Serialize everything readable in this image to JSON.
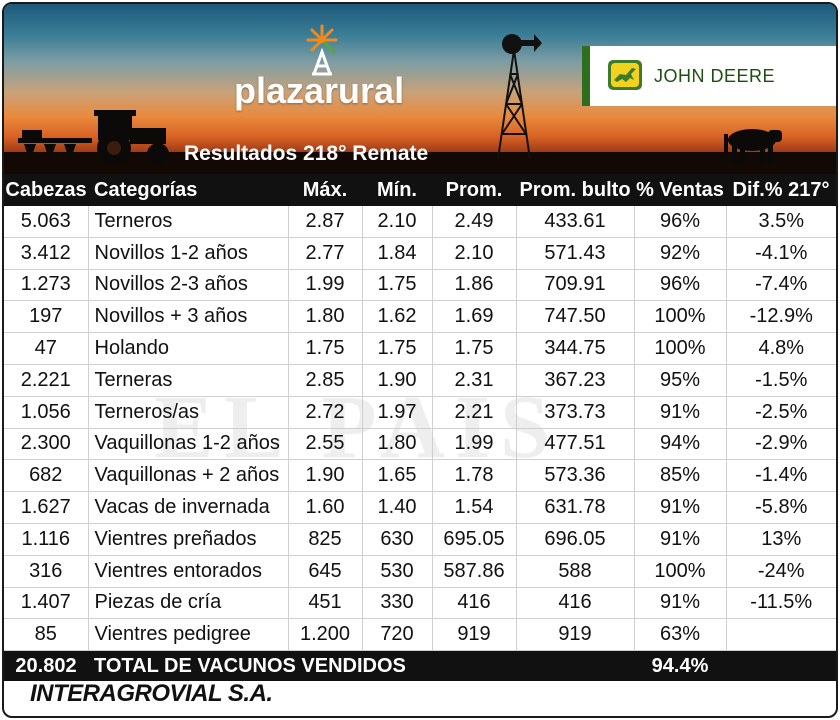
{
  "header": {
    "brand": "plazarural",
    "title": "Resultados 218° Remate",
    "sponsor": "JOHN DEERE"
  },
  "watermark": "EL PAIS",
  "table": {
    "columns": [
      "Cabezas",
      "Categorías",
      "Máx.",
      "Mín.",
      "Prom.",
      "Prom. bulto",
      "% Ventas",
      "Dif.% 217°"
    ],
    "rows": [
      [
        "5.063",
        "Terneros",
        "2.87",
        "2.10",
        "2.49",
        "433.61",
        "96%",
        "3.5%"
      ],
      [
        "3.412",
        "Novillos 1-2 años",
        "2.77",
        "1.84",
        "2.10",
        "571.43",
        "92%",
        "-4.1%"
      ],
      [
        "1.273",
        "Novillos 2-3 años",
        "1.99",
        "1.75",
        "1.86",
        "709.91",
        "96%",
        "-7.4%"
      ],
      [
        "197",
        "Novillos + 3 años",
        "1.80",
        "1.62",
        "1.69",
        "747.50",
        "100%",
        "-12.9%"
      ],
      [
        "47",
        "Holando",
        "1.75",
        "1.75",
        "1.75",
        "344.75",
        "100%",
        "4.8%"
      ],
      [
        "2.221",
        "Terneras",
        "2.85",
        "1.90",
        "2.31",
        "367.23",
        "95%",
        "-1.5%"
      ],
      [
        "1.056",
        "Terneros/as",
        "2.72",
        "1.97",
        "2.21",
        "373.73",
        "91%",
        "-2.5%"
      ],
      [
        "2.300",
        "Vaquillonas 1-2 años",
        "2.55",
        "1.80",
        "1.99",
        "477.51",
        "94%",
        "-2.9%"
      ],
      [
        "682",
        "Vaquillonas + 2 años",
        "1.90",
        "1.65",
        "1.78",
        "573.36",
        "85%",
        "-1.4%"
      ],
      [
        "1.627",
        "Vacas de invernada",
        "1.60",
        "1.40",
        "1.54",
        "631.78",
        "91%",
        "-5.8%"
      ],
      [
        "1.116",
        "Vientres preñados",
        "825",
        "630",
        "695.05",
        "696.05",
        "91%",
        "13%"
      ],
      [
        "316",
        "Vientres entorados",
        "645",
        "530",
        "587.86",
        "588",
        "100%",
        "-24%"
      ],
      [
        "1.407",
        "Piezas de cría",
        "451",
        "330",
        "416",
        "416",
        "91%",
        "-11.5%"
      ],
      [
        "85",
        "Vientres pedigree",
        "1.200",
        "720",
        "919",
        "919",
        "63%",
        ""
      ]
    ],
    "total": {
      "cabezas": "20.802",
      "label": "TOTAL DE VACUNOS VENDIDOS",
      "ventas": "94.4%"
    }
  },
  "footer": {
    "company": "INTERAGROVIAL S.A."
  }
}
